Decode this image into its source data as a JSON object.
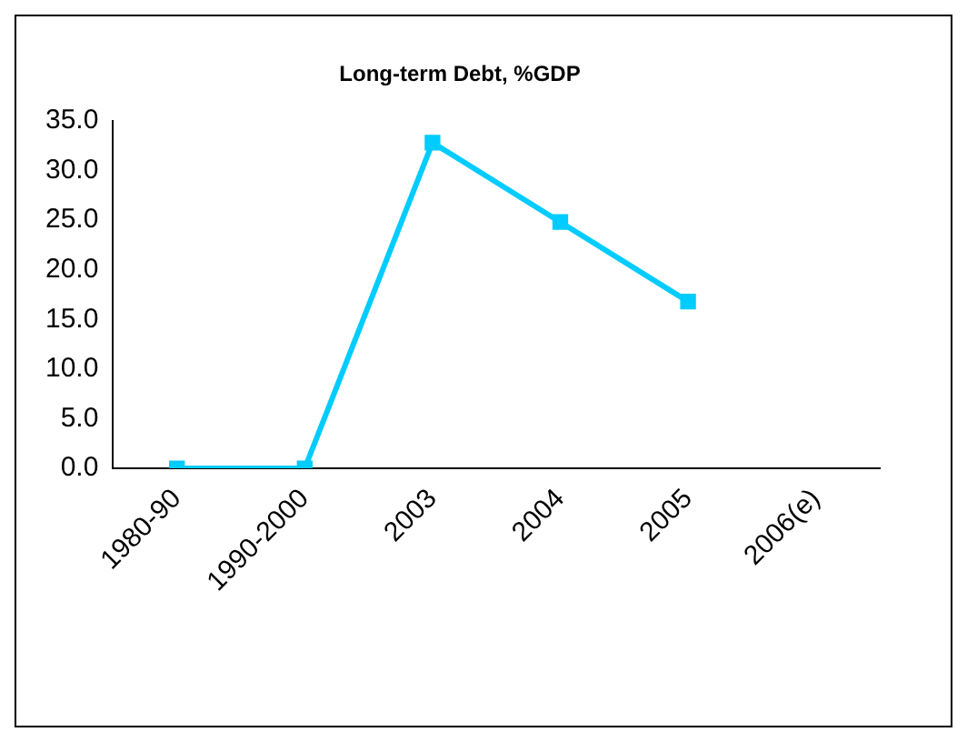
{
  "chart_data": {
    "type": "line",
    "title": "Long-term Debt, %GDP",
    "categories": [
      "1980-90",
      "1990-2000",
      "2003",
      "2004",
      "2005",
      "2006(e)"
    ],
    "series": [
      {
        "color": "#00ccff",
        "values": [
          0,
          0,
          32.8,
          24.8,
          16.8,
          null
        ]
      }
    ],
    "ylim": [
      0,
      35
    ],
    "yticks": [
      {
        "value": 0,
        "label": "0.0"
      },
      {
        "value": 5,
        "label": "5.0"
      },
      {
        "value": 10,
        "label": "10.0"
      },
      {
        "value": 15,
        "label": "15.0"
      },
      {
        "value": 20,
        "label": "20.0"
      },
      {
        "value": 25,
        "label": "25.0"
      },
      {
        "value": 30,
        "label": "30.0"
      },
      {
        "value": 35,
        "label": "35.0"
      }
    ],
    "grid": false,
    "legend": false,
    "marker": "square",
    "line_style": "solid"
  }
}
